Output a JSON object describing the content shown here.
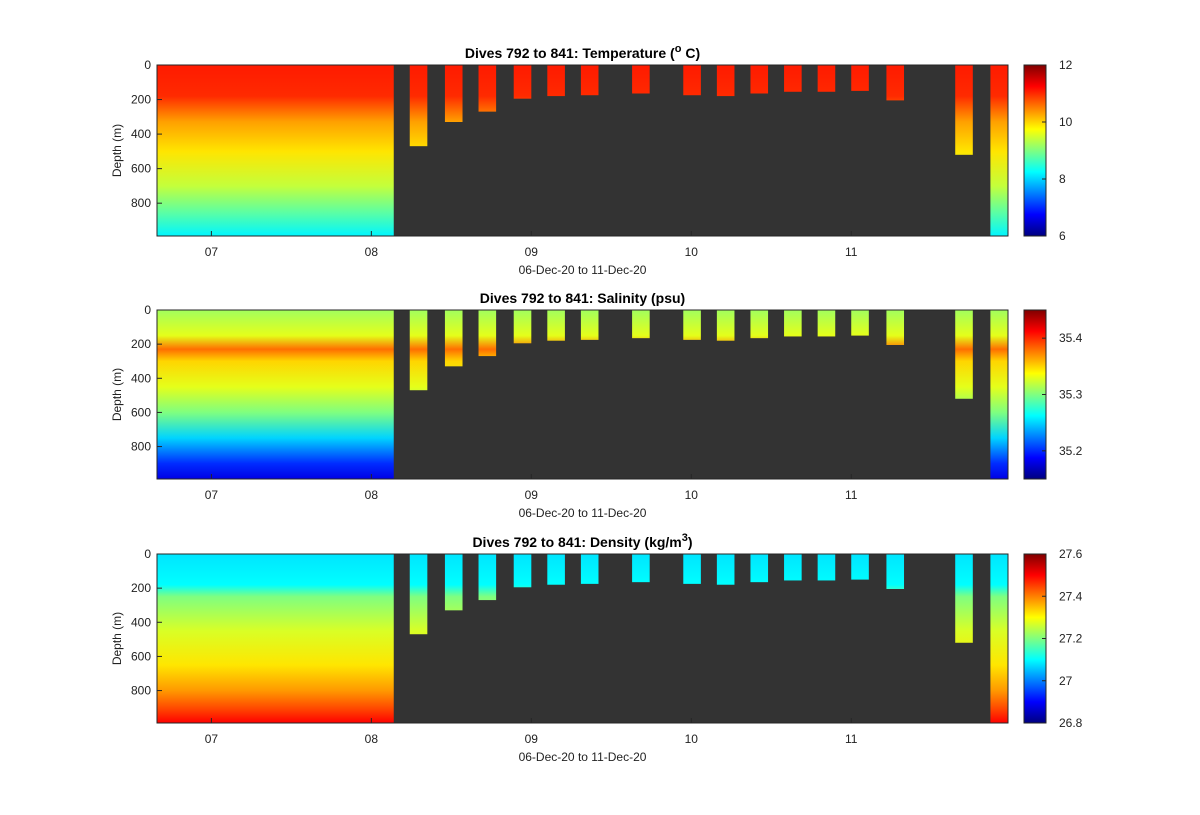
{
  "chart_data": [
    {
      "type": "heatmap",
      "title": "Dives 792 to 841: Temperature (",
      "title_sup": "o",
      "title_end": " C)",
      "ylabel": "Depth (m)",
      "xlabel": "06-Dec-20 to 11-Dec-20",
      "x_ticks": [
        "07",
        "08",
        "09",
        "10",
        "11"
      ],
      "x_tick_days": [
        7,
        8,
        9,
        10,
        11
      ],
      "xlim": [
        6.66,
        11.98
      ],
      "y_ticks": [
        "0",
        "200",
        "400",
        "600",
        "800"
      ],
      "y_tick_values": [
        0,
        200,
        400,
        600,
        800
      ],
      "ylim": [
        0,
        990
      ],
      "colorbar_ticks": [
        "12",
        "10",
        "8",
        "6"
      ],
      "colorbar_tick_values": [
        12,
        10,
        8,
        6
      ],
      "clim": [
        6,
        12
      ],
      "background_color": "#333333",
      "gradient_stops": [
        {
          "depth": 0,
          "value": 11.1
        },
        {
          "depth": 180,
          "value": 11.0
        },
        {
          "depth": 330,
          "value": 10.3
        },
        {
          "depth": 500,
          "value": 9.9
        },
        {
          "depth": 700,
          "value": 9.4
        },
        {
          "depth": 850,
          "value": 8.8
        },
        {
          "depth": 990,
          "value": 8.2
        }
      ],
      "continuous_block": {
        "x_start": 6.66,
        "x_end": 8.14
      },
      "profiles": [
        {
          "x_start": 8.24,
          "x_end": 8.35,
          "max_depth": 470
        },
        {
          "x_start": 8.46,
          "x_end": 8.57,
          "max_depth": 330
        },
        {
          "x_start": 8.67,
          "x_end": 8.78,
          "max_depth": 270
        },
        {
          "x_start": 8.89,
          "x_end": 9.0,
          "max_depth": 195
        },
        {
          "x_start": 9.1,
          "x_end": 9.21,
          "max_depth": 180
        },
        {
          "x_start": 9.31,
          "x_end": 9.42,
          "max_depth": 175
        },
        {
          "x_start": 9.63,
          "x_end": 9.74,
          "max_depth": 165
        },
        {
          "x_start": 9.95,
          "x_end": 10.06,
          "max_depth": 175
        },
        {
          "x_start": 10.16,
          "x_end": 10.27,
          "max_depth": 180
        },
        {
          "x_start": 10.37,
          "x_end": 10.48,
          "max_depth": 165
        },
        {
          "x_start": 10.58,
          "x_end": 10.69,
          "max_depth": 155
        },
        {
          "x_start": 10.79,
          "x_end": 10.9,
          "max_depth": 155
        },
        {
          "x_start": 11.0,
          "x_end": 11.11,
          "max_depth": 150
        },
        {
          "x_start": 11.22,
          "x_end": 11.33,
          "max_depth": 205
        },
        {
          "x_start": 11.65,
          "x_end": 11.76,
          "max_depth": 520
        },
        {
          "x_start": 11.87,
          "x_end": 11.98,
          "max_depth": 990
        }
      ]
    },
    {
      "type": "heatmap",
      "title": "Dives 792 to 841: Salinity (psu)",
      "title_sup": "",
      "title_end": "",
      "ylabel": "Depth (m)",
      "xlabel": "06-Dec-20 to 11-Dec-20",
      "x_ticks": [
        "07",
        "08",
        "09",
        "10",
        "11"
      ],
      "x_tick_days": [
        7,
        8,
        9,
        10,
        11
      ],
      "xlim": [
        6.66,
        11.98
      ],
      "y_ticks": [
        "0",
        "200",
        "400",
        "600",
        "800"
      ],
      "y_tick_values": [
        0,
        200,
        400,
        600,
        800
      ],
      "ylim": [
        0,
        990
      ],
      "colorbar_ticks": [
        "35.4",
        "35.3",
        "35.2"
      ],
      "colorbar_tick_values": [
        35.4,
        35.3,
        35.2
      ],
      "clim": [
        35.15,
        35.45
      ],
      "background_color": "#333333",
      "gradient_stops": [
        {
          "depth": 0,
          "value": 35.31
        },
        {
          "depth": 150,
          "value": 35.33
        },
        {
          "depth": 230,
          "value": 35.38
        },
        {
          "depth": 300,
          "value": 35.35
        },
        {
          "depth": 450,
          "value": 35.33
        },
        {
          "depth": 600,
          "value": 35.3
        },
        {
          "depth": 750,
          "value": 35.25
        },
        {
          "depth": 900,
          "value": 35.2
        },
        {
          "depth": 990,
          "value": 35.18
        }
      ],
      "continuous_block": {
        "x_start": 6.66,
        "x_end": 8.14
      },
      "profiles": [
        {
          "x_start": 8.24,
          "x_end": 8.35,
          "max_depth": 470
        },
        {
          "x_start": 8.46,
          "x_end": 8.57,
          "max_depth": 330
        },
        {
          "x_start": 8.67,
          "x_end": 8.78,
          "max_depth": 270
        },
        {
          "x_start": 8.89,
          "x_end": 9.0,
          "max_depth": 195
        },
        {
          "x_start": 9.1,
          "x_end": 9.21,
          "max_depth": 180
        },
        {
          "x_start": 9.31,
          "x_end": 9.42,
          "max_depth": 175
        },
        {
          "x_start": 9.63,
          "x_end": 9.74,
          "max_depth": 165
        },
        {
          "x_start": 9.95,
          "x_end": 10.06,
          "max_depth": 175
        },
        {
          "x_start": 10.16,
          "x_end": 10.27,
          "max_depth": 180
        },
        {
          "x_start": 10.37,
          "x_end": 10.48,
          "max_depth": 165
        },
        {
          "x_start": 10.58,
          "x_end": 10.69,
          "max_depth": 155
        },
        {
          "x_start": 10.79,
          "x_end": 10.9,
          "max_depth": 155
        },
        {
          "x_start": 11.0,
          "x_end": 11.11,
          "max_depth": 150
        },
        {
          "x_start": 11.22,
          "x_end": 11.33,
          "max_depth": 205
        },
        {
          "x_start": 11.65,
          "x_end": 11.76,
          "max_depth": 520
        },
        {
          "x_start": 11.87,
          "x_end": 11.98,
          "max_depth": 990
        }
      ]
    },
    {
      "type": "heatmap",
      "title": "Dives 792 to 841: Density (kg/m",
      "title_sup": "3",
      "title_end": ")",
      "ylabel": "Depth (m)",
      "xlabel": "06-Dec-20 to 11-Dec-20",
      "x_ticks": [
        "07",
        "08",
        "09",
        "10",
        "11"
      ],
      "x_tick_days": [
        7,
        8,
        9,
        10,
        11
      ],
      "xlim": [
        6.66,
        11.98
      ],
      "y_ticks": [
        "0",
        "200",
        "400",
        "600",
        "800"
      ],
      "y_tick_values": [
        0,
        200,
        400,
        600,
        800
      ],
      "ylim": [
        0,
        990
      ],
      "colorbar_ticks": [
        "27.6",
        "27.4",
        "27.2",
        "27",
        "26.8"
      ],
      "colorbar_tick_values": [
        27.6,
        27.4,
        27.2,
        27.0,
        26.8
      ],
      "clim": [
        26.8,
        27.6
      ],
      "background_color": "#333333",
      "gradient_stops": [
        {
          "depth": 0,
          "value": 27.08
        },
        {
          "depth": 180,
          "value": 27.1
        },
        {
          "depth": 250,
          "value": 27.2
        },
        {
          "depth": 450,
          "value": 27.27
        },
        {
          "depth": 650,
          "value": 27.32
        },
        {
          "depth": 800,
          "value": 27.38
        },
        {
          "depth": 900,
          "value": 27.44
        },
        {
          "depth": 990,
          "value": 27.5
        }
      ],
      "continuous_block": {
        "x_start": 6.66,
        "x_end": 8.14
      },
      "profiles": [
        {
          "x_start": 8.24,
          "x_end": 8.35,
          "max_depth": 470
        },
        {
          "x_start": 8.46,
          "x_end": 8.57,
          "max_depth": 330
        },
        {
          "x_start": 8.67,
          "x_end": 8.78,
          "max_depth": 270
        },
        {
          "x_start": 8.89,
          "x_end": 9.0,
          "max_depth": 195
        },
        {
          "x_start": 9.1,
          "x_end": 9.21,
          "max_depth": 180
        },
        {
          "x_start": 9.31,
          "x_end": 9.42,
          "max_depth": 175
        },
        {
          "x_start": 9.63,
          "x_end": 9.74,
          "max_depth": 165
        },
        {
          "x_start": 9.95,
          "x_end": 10.06,
          "max_depth": 175
        },
        {
          "x_start": 10.16,
          "x_end": 10.27,
          "max_depth": 180
        },
        {
          "x_start": 10.37,
          "x_end": 10.48,
          "max_depth": 165
        },
        {
          "x_start": 10.58,
          "x_end": 10.69,
          "max_depth": 155
        },
        {
          "x_start": 10.79,
          "x_end": 10.9,
          "max_depth": 155
        },
        {
          "x_start": 11.0,
          "x_end": 11.11,
          "max_depth": 150
        },
        {
          "x_start": 11.22,
          "x_end": 11.33,
          "max_depth": 205
        },
        {
          "x_start": 11.65,
          "x_end": 11.76,
          "max_depth": 520
        },
        {
          "x_start": 11.87,
          "x_end": 11.98,
          "max_depth": 990
        }
      ]
    }
  ]
}
